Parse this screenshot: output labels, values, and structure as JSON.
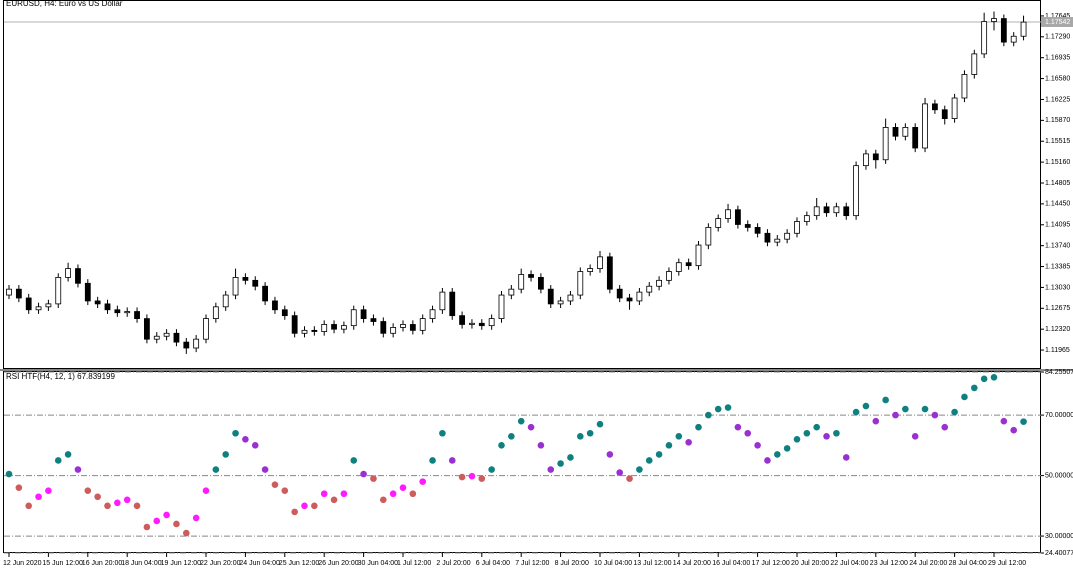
{
  "chart_data": [
    {
      "type": "candlestick",
      "title": "EURUSD, H4: Euro vs US Dollar",
      "categories": [
        "12 Jun 2020",
        null,
        null,
        null,
        "15 Jun 12:00",
        null,
        null,
        null,
        "16 Jun 20:00",
        null,
        null,
        null,
        "18 Jun 04:00",
        null,
        null,
        null,
        "19 Jun 12:00",
        null,
        null,
        null,
        "22 Jun 20:00",
        null,
        null,
        null,
        "24 Jun 04:00",
        null,
        null,
        null,
        "25 Jun 12:00",
        null,
        null,
        null,
        "26 Jun 20:00",
        null,
        null,
        null,
        "30 Jun 04:00",
        null,
        null,
        null,
        "1 Jul 12:00",
        null,
        null,
        null,
        "2 Jul 20:00",
        null,
        null,
        null,
        "6 Jul 04:00",
        null,
        null,
        null,
        "7 Jul 12:00",
        null,
        null,
        null,
        "8 Jul 20:00",
        null,
        null,
        null,
        "10 Jul 04:00",
        null,
        null,
        null,
        "13 Jul 12:00",
        null,
        null,
        null,
        "14 Jul 20:00",
        null,
        null,
        null,
        "16 Jul 04:00",
        null,
        null,
        null,
        "17 Jul 12:00",
        null,
        null,
        null,
        "20 Jul 20:00",
        null,
        null,
        null,
        "22 Jul 04:00",
        null,
        null,
        null,
        "23 Jul 12:00",
        null,
        null,
        null,
        "24 Jul 20:00",
        null,
        null,
        null,
        "28 Jul 04:00",
        null,
        null,
        null,
        "29 Jul 12:00",
        null,
        null,
        null
      ],
      "open": [
        1.129,
        1.13,
        1.1285,
        1.1265,
        1.127,
        1.1275,
        1.132,
        1.1335,
        1.131,
        1.128,
        1.1275,
        1.1265,
        1.126,
        1.1262,
        1.125,
        1.1215,
        1.122,
        1.1225,
        1.121,
        1.12,
        1.1215,
        1.125,
        1.127,
        1.129,
        1.132,
        1.1315,
        1.1305,
        1.128,
        1.1265,
        1.1255,
        1.1225,
        1.123,
        1.1228,
        1.124,
        1.1232,
        1.1238,
        1.1265,
        1.125,
        1.1245,
        1.1225,
        1.1235,
        1.124,
        1.123,
        1.125,
        1.1265,
        1.1295,
        1.1255,
        1.124,
        1.1242,
        1.1238,
        1.125,
        1.129,
        1.13,
        1.1325,
        1.132,
        1.13,
        1.1275,
        1.128,
        1.129,
        1.133,
        1.1335,
        1.1355,
        1.13,
        1.1285,
        1.128,
        1.1295,
        1.1305,
        1.1315,
        1.133,
        1.1345,
        1.134,
        1.1375,
        1.1405,
        1.142,
        1.1435,
        1.141,
        1.1405,
        1.1395,
        1.138,
        1.1385,
        1.1395,
        1.1415,
        1.1425,
        1.144,
        1.143,
        1.144,
        1.1425,
        1.151,
        1.153,
        1.152,
        1.1575,
        1.156,
        1.1575,
        1.154,
        1.1615,
        1.1605,
        1.159,
        1.1625,
        1.1665,
        1.17,
        1.1755,
        1.176,
        1.172,
        1.173
      ],
      "high": [
        1.1307,
        1.1307,
        1.1292,
        1.1277,
        1.1282,
        1.1327,
        1.1345,
        1.1342,
        1.1317,
        1.1287,
        1.1282,
        1.1272,
        1.1269,
        1.1269,
        1.1257,
        1.1227,
        1.1232,
        1.1232,
        1.1217,
        1.1222,
        1.1257,
        1.1277,
        1.1297,
        1.1335,
        1.1327,
        1.1322,
        1.1312,
        1.1287,
        1.1272,
        1.1262,
        1.1237,
        1.1237,
        1.1247,
        1.1247,
        1.1245,
        1.1272,
        1.1272,
        1.1257,
        1.1252,
        1.1242,
        1.1247,
        1.1247,
        1.1257,
        1.1272,
        1.1302,
        1.1302,
        1.1262,
        1.1249,
        1.1249,
        1.1257,
        1.1297,
        1.1307,
        1.1335,
        1.1332,
        1.1327,
        1.1307,
        1.1287,
        1.1297,
        1.1337,
        1.1342,
        1.1365,
        1.1362,
        1.1307,
        1.1292,
        1.1302,
        1.1312,
        1.1322,
        1.1337,
        1.1352,
        1.1352,
        1.1382,
        1.1412,
        1.1427,
        1.1445,
        1.1442,
        1.1417,
        1.1412,
        1.1402,
        1.1392,
        1.1402,
        1.1422,
        1.1432,
        1.1455,
        1.1447,
        1.1447,
        1.1447,
        1.1517,
        1.1537,
        1.1537,
        1.159,
        1.1582,
        1.1582,
        1.1582,
        1.1625,
        1.1622,
        1.1612,
        1.1632,
        1.1672,
        1.1707,
        1.177,
        1.1772,
        1.1767,
        1.1737,
        1.1765
      ],
      "low": [
        1.1283,
        1.1278,
        1.1258,
        1.1258,
        1.1263,
        1.1268,
        1.1313,
        1.1303,
        1.1273,
        1.1268,
        1.1258,
        1.1253,
        1.1253,
        1.1243,
        1.1208,
        1.1208,
        1.1213,
        1.1203,
        1.119,
        1.1193,
        1.1208,
        1.1243,
        1.1263,
        1.1283,
        1.1308,
        1.1298,
        1.1273,
        1.1258,
        1.1248,
        1.1218,
        1.1218,
        1.1221,
        1.1221,
        1.1225,
        1.1225,
        1.1231,
        1.1243,
        1.1238,
        1.1218,
        1.1218,
        1.1228,
        1.1223,
        1.1223,
        1.1243,
        1.1258,
        1.1248,
        1.1233,
        1.1233,
        1.1231,
        1.1231,
        1.1243,
        1.1283,
        1.1293,
        1.1313,
        1.1293,
        1.1268,
        1.1268,
        1.1273,
        1.1283,
        1.1323,
        1.1328,
        1.1293,
        1.1278,
        1.1265,
        1.1273,
        1.1288,
        1.1298,
        1.1308,
        1.1323,
        1.1333,
        1.1333,
        1.1368,
        1.1398,
        1.1413,
        1.1403,
        1.1398,
        1.1388,
        1.1373,
        1.1373,
        1.1378,
        1.1388,
        1.1408,
        1.1418,
        1.1423,
        1.1423,
        1.1418,
        1.1418,
        1.1503,
        1.1505,
        1.1513,
        1.1553,
        1.1553,
        1.1533,
        1.1533,
        1.1598,
        1.158,
        1.1583,
        1.1618,
        1.1658,
        1.1693,
        1.174,
        1.1713,
        1.1713,
        1.1723
      ],
      "close": [
        1.13,
        1.1285,
        1.1265,
        1.127,
        1.1275,
        1.132,
        1.1335,
        1.131,
        1.128,
        1.1275,
        1.1265,
        1.126,
        1.1262,
        1.125,
        1.1215,
        1.122,
        1.1225,
        1.121,
        1.12,
        1.1215,
        1.125,
        1.127,
        1.129,
        1.132,
        1.1315,
        1.1305,
        1.128,
        1.1265,
        1.1255,
        1.1225,
        1.123,
        1.1228,
        1.124,
        1.1232,
        1.1238,
        1.1265,
        1.125,
        1.1245,
        1.1225,
        1.1235,
        1.124,
        1.123,
        1.125,
        1.1265,
        1.1295,
        1.1255,
        1.124,
        1.1242,
        1.1238,
        1.125,
        1.129,
        1.13,
        1.1325,
        1.132,
        1.13,
        1.1275,
        1.128,
        1.129,
        1.133,
        1.1335,
        1.1355,
        1.13,
        1.1285,
        1.128,
        1.1295,
        1.1305,
        1.1315,
        1.133,
        1.1345,
        1.134,
        1.1375,
        1.1405,
        1.142,
        1.1435,
        1.141,
        1.1405,
        1.1395,
        1.138,
        1.1385,
        1.1395,
        1.1415,
        1.1425,
        1.144,
        1.143,
        1.144,
        1.1425,
        1.151,
        1.153,
        1.152,
        1.1575,
        1.156,
        1.1575,
        1.154,
        1.1615,
        1.1605,
        1.159,
        1.1625,
        1.1665,
        1.17,
        1.1755,
        1.176,
        1.172,
        1.173,
        1.1754
      ],
      "up_color": "#ffffff",
      "down_color": "#000000",
      "ylim": [
        1.1166,
        1.1778
      ],
      "yticks": [
        1.17645,
        {
          "value": 1.1729,
          "label": "1.17290"
        },
        1.16935,
        {
          "value": 1.1658,
          "label": "1.16580"
        },
        1.16225,
        {
          "value": 1.1587,
          "label": "1.15870"
        },
        1.15515,
        {
          "value": 1.1516,
          "label": "1.15160"
        },
        1.14805,
        {
          "value": 1.1445,
          "label": "1.14450"
        },
        1.14095,
        {
          "value": 1.1374,
          "label": "1.13740"
        },
        1.13385,
        {
          "value": 1.1303,
          "label": "1.13030"
        },
        1.12675,
        {
          "value": 1.1232,
          "label": "1.12320"
        },
        1.11965
      ],
      "price_line": {
        "value": 1.17542,
        "label": "1.17542"
      }
    },
    {
      "type": "dots",
      "title": "RSI HTF(H4, 12, 1) 67.839199",
      "values": [
        50.5,
        46,
        40,
        43,
        45,
        55,
        57,
        52,
        45,
        43,
        40,
        41,
        42,
        40,
        33,
        35,
        37,
        34,
        31,
        36,
        45,
        52,
        57,
        64,
        62,
        60,
        52,
        47,
        45,
        38,
        40,
        40,
        44,
        42,
        44,
        55,
        50.5,
        49,
        42,
        44,
        46,
        44,
        48,
        55,
        64,
        55,
        49.5,
        49.8,
        49,
        52,
        60,
        63,
        68,
        66,
        60,
        52,
        54,
        56,
        63,
        64,
        67,
        57,
        51,
        49,
        52,
        55,
        57,
        60,
        63,
        61,
        66,
        70,
        72,
        72.5,
        66,
        64,
        60,
        55,
        57,
        59,
        62,
        64,
        66,
        63,
        64,
        56,
        71,
        73,
        68,
        75,
        70,
        72,
        63,
        72,
        70,
        66,
        71,
        76,
        79,
        82,
        82.5,
        68,
        65,
        67.839199
      ],
      "colors": [
        "#0f8080",
        "#cd5c5c",
        "#cd5c5c",
        "#ff1aff",
        "#ff1aff",
        "#0f8080",
        "#0f8080",
        "#9b30d0",
        "#cd5c5c",
        "#cd5c5c",
        "#cd5c5c",
        "#ff1aff",
        "#ff1aff",
        "#cd5c5c",
        "#cd5c5c",
        "#ff1aff",
        "#ff1aff",
        "#cd5c5c",
        "#cd5c5c",
        "#ff1aff",
        "#ff1aff",
        "#0f8080",
        "#0f8080",
        "#0f8080",
        "#9b30d0",
        "#9b30d0",
        "#9b30d0",
        "#cd5c5c",
        "#cd5c5c",
        "#cd5c5c",
        "#ff1aff",
        "#cd5c5c",
        "#ff1aff",
        "#cd5c5c",
        "#ff1aff",
        "#0f8080",
        "#9b30d0",
        "#cd5c5c",
        "#cd5c5c",
        "#ff1aff",
        "#ff1aff",
        "#cd5c5c",
        "#ff1aff",
        "#0f8080",
        "#0f8080",
        "#9b30d0",
        "#cd5c5c",
        "#ff1aff",
        "#cd5c5c",
        "#0f8080",
        "#0f8080",
        "#0f8080",
        "#0f8080",
        "#9b30d0",
        "#9b30d0",
        "#9b30d0",
        "#0f8080",
        "#0f8080",
        "#0f8080",
        "#0f8080",
        "#0f8080",
        "#9b30d0",
        "#9b30d0",
        "#cd5c5c",
        "#0f8080",
        "#0f8080",
        "#0f8080",
        "#0f8080",
        "#0f8080",
        "#9b30d0",
        "#0f8080",
        "#0f8080",
        "#0f8080",
        "#0f8080",
        "#9b30d0",
        "#9b30d0",
        "#9b30d0",
        "#9b30d0",
        "#0f8080",
        "#0f8080",
        "#0f8080",
        "#0f8080",
        "#0f8080",
        "#9b30d0",
        "#0f8080",
        "#9b30d0",
        "#0f8080",
        "#0f8080",
        "#9b30d0",
        "#0f8080",
        "#9b30d0",
        "#0f8080",
        "#9b30d0",
        "#0f8080",
        "#9b30d0",
        "#9b30d0",
        "#0f8080",
        "#0f8080",
        "#0f8080",
        "#0f8080",
        "#0f8080",
        "#9b30d0",
        "#9b30d0",
        "#0f8080"
      ],
      "ylim": [
        24.400771,
        84.255071
      ],
      "yticks": [
        84.255071,
        {
          "value": 70,
          "label": "70.000000"
        },
        {
          "value": 50,
          "label": "50.000000"
        },
        {
          "value": 30,
          "label": "30.000000"
        },
        24.400771
      ],
      "grid": true
    }
  ]
}
